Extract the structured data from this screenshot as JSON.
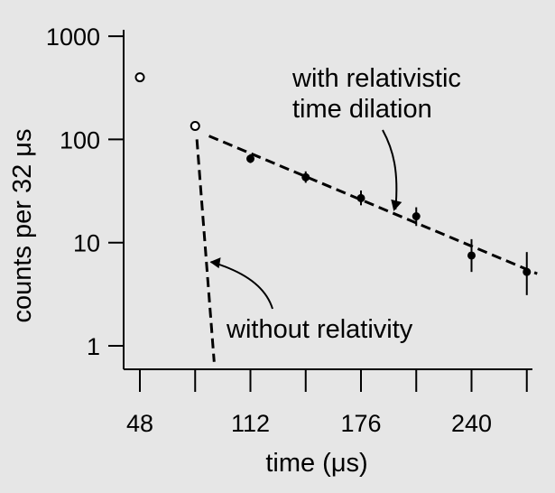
{
  "chart_data": {
    "type": "scatter",
    "title": "",
    "xlabel": "time (μs)",
    "ylabel": "counts per 32 μs",
    "yscale": "log",
    "xlim": [
      40,
      280
    ],
    "ylim": [
      0.45,
      1300
    ],
    "x_ticks": [
      48,
      80,
      112,
      144,
      176,
      208,
      240,
      272
    ],
    "x_tick_labels": [
      "48",
      "112",
      "176",
      "240"
    ],
    "x_tick_label_values": [
      48,
      112,
      176,
      240
    ],
    "y_ticks": [
      1,
      10,
      100,
      1000
    ],
    "y_tick_labels": [
      "1",
      "10",
      "100",
      "1000"
    ],
    "grid": false,
    "series": [
      {
        "marker": "open-circle",
        "points": [
          {
            "x": 48,
            "y": 400
          },
          {
            "x": 80,
            "y": 135
          }
        ]
      },
      {
        "marker": "filled-circle",
        "points": [
          {
            "x": 112,
            "y": 65,
            "err_low": 59,
            "err_high": 72
          },
          {
            "x": 144,
            "y": 43,
            "err_low": 38,
            "err_high": 49
          },
          {
            "x": 176,
            "y": 27,
            "err_low": 23,
            "err_high": 32
          },
          {
            "x": 208,
            "y": 18,
            "err_low": 14.5,
            "err_high": 22
          },
          {
            "x": 240,
            "y": 7.5,
            "err_low": 5.2,
            "err_high": 10.8
          },
          {
            "x": 272,
            "y": 5.2,
            "err_low": 3.1,
            "err_high": 8.1
          }
        ]
      }
    ],
    "fit_lines": [
      {
        "style": "dashed",
        "from": {
          "x": 88,
          "y": 108
        },
        "to": {
          "x": 278,
          "y": 5
        }
      },
      {
        "style": "dashed",
        "from": {
          "x": 81,
          "y": 100
        },
        "to": {
          "x": 91,
          "y": 0.7
        }
      }
    ],
    "annotations": [
      {
        "text_lines": [
          "with relativistic",
          "time dilation"
        ],
        "points_to": {
          "x": 196,
          "y": 21
        }
      },
      {
        "text_lines": [
          "without relativity"
        ],
        "points_to": {
          "x": 88,
          "y": 6.5
        }
      }
    ]
  }
}
